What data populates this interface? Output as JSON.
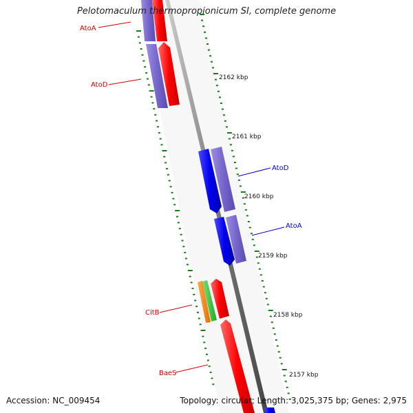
{
  "title": "Pelotomaculum thermopropionicum SI, complete genome",
  "footer": {
    "accession": "Accession: NC_009454",
    "summary": "Topology: circular; Length: 3,025,375 bp; Genes: 2,975"
  },
  "colors": {
    "forward_label": "#cc0000",
    "reverse_label": "#0000cc",
    "ruler": "#1a7a1a",
    "backbone": "#7a7a7a"
  },
  "ticks": [
    {
      "label": "2162 kbp"
    },
    {
      "label": "2161 kbp"
    },
    {
      "label": "2160 kbp"
    },
    {
      "label": "2159 kbp"
    },
    {
      "label": "2158 kbp"
    },
    {
      "label": "2157 kbp"
    }
  ],
  "gene_labels": [
    {
      "text": "AtoA",
      "strand": "forward"
    },
    {
      "text": "AtoD",
      "strand": "forward"
    },
    {
      "text": "AtoD",
      "strand": "reverse"
    },
    {
      "text": "AtoA",
      "strand": "reverse"
    },
    {
      "text": "CitB",
      "strand": "forward"
    },
    {
      "text": "BaeS",
      "strand": "forward"
    }
  ],
  "features": [
    {
      "name": "AtoA",
      "track": "forward-cds",
      "color": "#ff0000"
    },
    {
      "name": "AtoA",
      "track": "forward-blast",
      "color": "#7766cc"
    },
    {
      "name": "AtoD",
      "track": "forward-cds",
      "color": "#ff0000"
    },
    {
      "name": "AtoD",
      "track": "forward-blast",
      "color": "#7766cc"
    },
    {
      "name": "AtoD",
      "track": "reverse-cds",
      "color": "#0000ee"
    },
    {
      "name": "AtoD",
      "track": "reverse-blast",
      "color": "#7766cc"
    },
    {
      "name": "AtoA",
      "track": "reverse-cds",
      "color": "#0000ee"
    },
    {
      "name": "AtoA",
      "track": "reverse-blast",
      "color": "#7766cc"
    },
    {
      "name": "",
      "track": "forward-cds",
      "color": "#ff0000"
    },
    {
      "name": "CitB",
      "track": "forward-orf-green",
      "color": "#33cc33"
    },
    {
      "name": "CitB",
      "track": "forward-orf-orange",
      "color": "#ff8800"
    },
    {
      "name": "BaeS",
      "track": "forward-cds",
      "color": "#ff0000"
    },
    {
      "name": "",
      "track": "reverse-cds",
      "color": "#0000ee"
    }
  ]
}
